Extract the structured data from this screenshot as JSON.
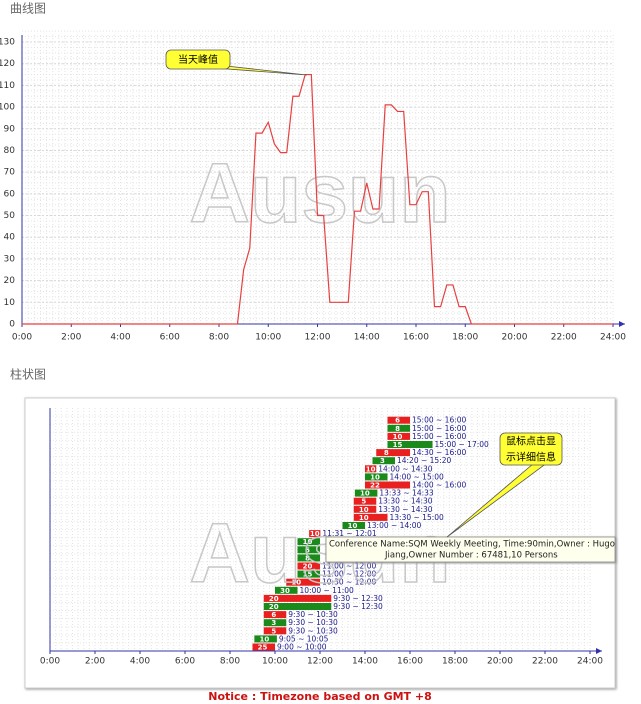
{
  "chart_data": [
    {
      "type": "line",
      "title": "曲线图",
      "watermark": "Ausun",
      "annotation": "当天峰值",
      "color": "#e84040",
      "grid": true,
      "x": [
        0,
        8.75,
        9.0,
        9.25,
        9.5,
        9.75,
        10.0,
        10.25,
        10.5,
        10.75,
        11.0,
        11.25,
        11.5,
        11.75,
        12.0,
        12.25,
        12.5,
        13.25,
        13.5,
        13.75,
        14.0,
        14.25,
        14.5,
        14.75,
        15.0,
        15.25,
        15.5,
        15.75,
        16.0,
        16.25,
        16.5,
        16.75,
        17.0,
        17.25,
        17.5,
        17.75,
        18.0,
        18.25,
        24
      ],
      "values": [
        0,
        0,
        25,
        35,
        88,
        88,
        93,
        83,
        79,
        79,
        105,
        105,
        115,
        115,
        50,
        50,
        10,
        10,
        52,
        52,
        65,
        53,
        53,
        101,
        101,
        98,
        98,
        55,
        55,
        61,
        61,
        8,
        8,
        18,
        18,
        8,
        8,
        0,
        0
      ],
      "xlim": [
        0,
        24
      ],
      "xticks": [
        {
          "value": 0,
          "label": "0:00"
        },
        {
          "value": 2,
          "label": "2:00"
        },
        {
          "value": 4,
          "label": "4:00"
        },
        {
          "value": 6,
          "label": "6:00"
        },
        {
          "value": 8,
          "label": "8:00"
        },
        {
          "value": 10,
          "label": "10:00"
        },
        {
          "value": 12,
          "label": "12:00"
        },
        {
          "value": 14,
          "label": "14:00"
        },
        {
          "value": 16,
          "label": "16:00"
        },
        {
          "value": 18,
          "label": "18:00"
        },
        {
          "value": 20,
          "label": "20:00"
        },
        {
          "value": 22,
          "label": "22:00"
        },
        {
          "value": 24,
          "label": "24:00"
        }
      ],
      "ylim": [
        0,
        130
      ],
      "yticks": [
        0,
        10,
        20,
        30,
        40,
        50,
        60,
        70,
        80,
        90,
        100,
        110,
        120,
        130
      ]
    },
    {
      "type": "gantt",
      "title": "柱状图",
      "watermark": "Ausun",
      "annotation": [
        "鼠标点击显",
        "示详细信息"
      ],
      "tooltip": [
        "Conference Name:SQM Weekly Meeting, Time:90min,Owner : Hugo",
        "Jiang,Owner Number : 67481,10 Persons"
      ],
      "footnote": "Notice : Timezone based on GMT +8",
      "grid": true,
      "xlim": [
        0,
        24
      ],
      "xticks": [
        {
          "value": 0,
          "label": "0:00"
        },
        {
          "value": 2,
          "label": "2:00"
        },
        {
          "value": 4,
          "label": "4:00"
        },
        {
          "value": 6,
          "label": "6:00"
        },
        {
          "value": 8,
          "label": "8:00"
        },
        {
          "value": 10,
          "label": "10:00"
        },
        {
          "value": 12,
          "label": "12:00"
        },
        {
          "value": 14,
          "label": "14:00"
        },
        {
          "value": 16,
          "label": "16:00"
        },
        {
          "value": 18,
          "label": "18:00"
        },
        {
          "value": 20,
          "label": "20:00"
        },
        {
          "value": 22,
          "label": "22:00"
        },
        {
          "value": 24,
          "label": "24:00"
        }
      ],
      "bars": [
        {
          "start": 9,
          "end": 10,
          "value": 25,
          "label": "9:00 ~ 10:00",
          "color": "#e82020"
        },
        {
          "start": 9.0833,
          "end": 10.0833,
          "value": 10,
          "label": "9:05 ~ 10:05",
          "color": "#1a8a1a"
        },
        {
          "start": 9.5,
          "end": 10.5,
          "value": 5,
          "label": "9:30 ~ 10:30",
          "color": "#e82020"
        },
        {
          "start": 9.5,
          "end": 10.5,
          "value": 3,
          "label": "9:30 ~ 10:30",
          "color": "#1a8a1a"
        },
        {
          "start": 9.5,
          "end": 10.5,
          "value": 6,
          "label": "9:30 ~ 10:30",
          "color": "#e82020"
        },
        {
          "start": 9.5,
          "end": 12.5,
          "value": 20,
          "label": "9:30 ~ 12:30",
          "color": "#1a8a1a"
        },
        {
          "start": 9.5,
          "end": 12.5,
          "value": 20,
          "label": "9:30 ~ 12:30",
          "color": "#e82020"
        },
        {
          "start": 10,
          "end": 11,
          "value": 30,
          "label": "10:00 ~ 11:00",
          "color": "#1a8a1a"
        },
        {
          "start": 10.5,
          "end": 12,
          "value": 10,
          "label": "10:30 ~ 12:00",
          "color": "#e82020"
        },
        {
          "start": 11,
          "end": 12,
          "value": 15,
          "label": "11:00 ~ 12:00",
          "color": "#1a8a1a"
        },
        {
          "start": 11,
          "end": 12,
          "value": 20,
          "label": "11:00 ~ 12:00",
          "color": "#e82020"
        },
        {
          "start": 11,
          "end": 12,
          "value": 8,
          "label": null,
          "color": "#1a8a1a"
        },
        {
          "start": 11,
          "end": 12,
          "value": 5,
          "label": null,
          "color": "#1a8a1a"
        },
        {
          "start": 11,
          "end": 12,
          "value": 10,
          "label": null,
          "color": "#1a8a1a"
        },
        {
          "start": 11.5167,
          "end": 12.0167,
          "value": 10,
          "label": "11:31 ~ 12:01",
          "color": "#e82020"
        },
        {
          "start": 13,
          "end": 14,
          "value": 10,
          "label": "13:00 ~ 14:00",
          "color": "#1a8a1a"
        },
        {
          "start": 13.5,
          "end": 15,
          "value": 10,
          "label": "13:30 ~ 15:00",
          "color": "#e82020"
        },
        {
          "start": 13.5,
          "end": 14.5,
          "value": 10,
          "label": "13:30 ~ 14:30",
          "color": "#e82020"
        },
        {
          "start": 13.5,
          "end": 14.5,
          "value": 5,
          "label": "13:30 ~ 14:30",
          "color": "#e82020"
        },
        {
          "start": 13.55,
          "end": 14.55,
          "value": 10,
          "label": "13:33 ~ 14:33",
          "color": "#1a8a1a"
        },
        {
          "start": 14,
          "end": 16,
          "value": 22,
          "label": "14:00 ~ 16:00",
          "color": "#e82020"
        },
        {
          "start": 14,
          "end": 15,
          "value": 10,
          "label": "14:00 ~ 15:00",
          "color": "#1a8a1a"
        },
        {
          "start": 14,
          "end": 14.5,
          "value": 10,
          "label": "14:00 ~ 14:30",
          "color": "#e82020"
        },
        {
          "start": 14.3333,
          "end": 15.3333,
          "value": 3,
          "label": "14:20 ~ 15:20",
          "color": "#1a8a1a"
        },
        {
          "start": 14.5,
          "end": 16,
          "value": 8,
          "label": "14:30 ~ 16:00",
          "color": "#e82020"
        },
        {
          "start": 15,
          "end": 17,
          "value": 15,
          "label": "15:00 ~ 17:00",
          "color": "#1a8a1a"
        },
        {
          "start": 15,
          "end": 16,
          "value": 10,
          "label": "15:00 ~ 16:00",
          "color": "#e82020"
        },
        {
          "start": 15,
          "end": 16,
          "value": 8,
          "label": "15:00 ~ 16:00",
          "color": "#1a8a1a"
        },
        {
          "start": 15,
          "end": 16,
          "value": 6,
          "label": "15:00 ~ 16:00",
          "color": "#e82020"
        }
      ]
    }
  ]
}
